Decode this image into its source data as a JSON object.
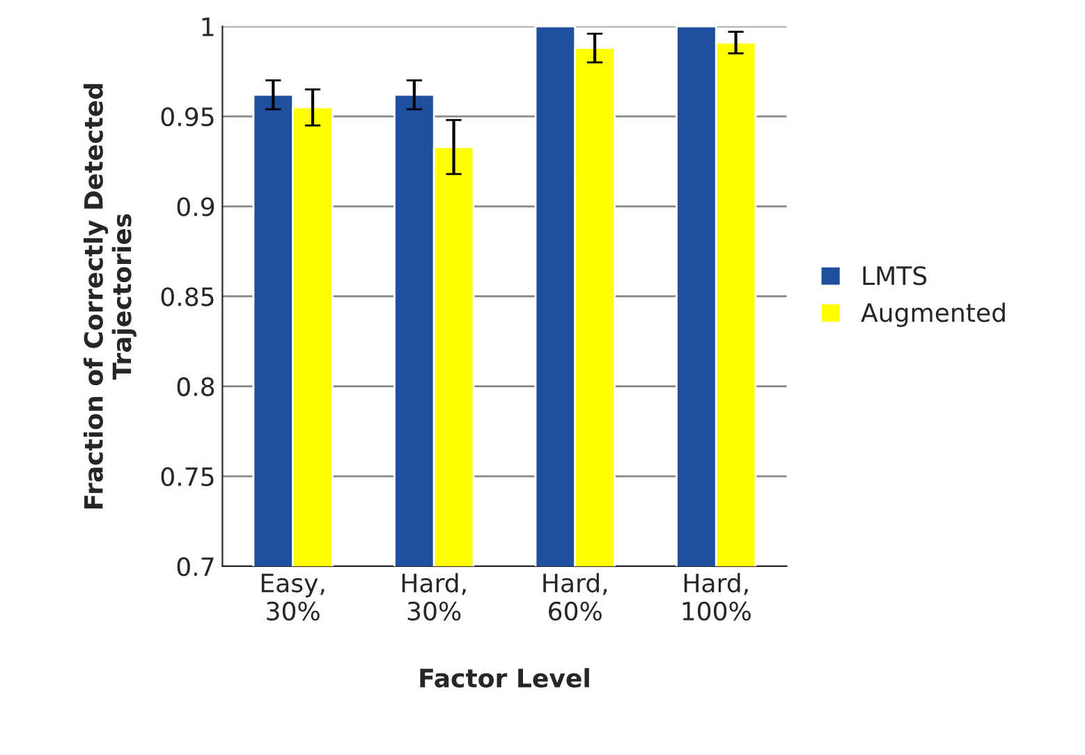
{
  "chart_data": {
    "type": "bar",
    "xlabel": "Factor Level",
    "ylabel": "Fraction of Correctly Detected\nTrajectories",
    "categories": [
      "Easy,\n30%",
      "Hard,\n30%",
      "Hard,\n60%",
      "Hard,\n100%"
    ],
    "series": [
      {
        "name": "LMTS",
        "color": "#1f4e9e",
        "values": [
          0.962,
          0.962,
          1,
          1
        ],
        "errors": [
          0.008,
          0.008,
          null,
          null
        ]
      },
      {
        "name": "Augmented",
        "color": "#ffff00",
        "values": [
          0.955,
          0.933,
          0.988,
          0.991
        ],
        "errors": [
          0.01,
          0.015,
          0.008,
          0.006
        ]
      }
    ],
    "ylim": [
      0.7,
      1
    ],
    "yticks": [
      0.7,
      0.75,
      0.8,
      0.85,
      0.9,
      0.95,
      1
    ],
    "grid": "y",
    "legend": "right"
  }
}
